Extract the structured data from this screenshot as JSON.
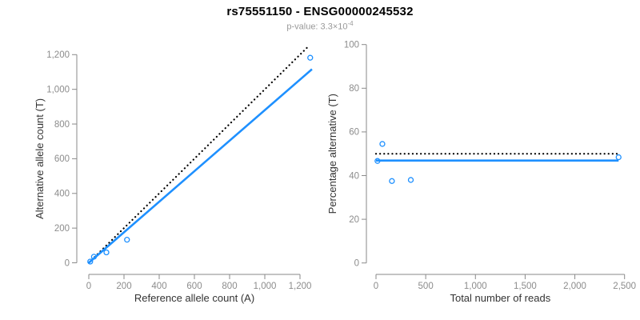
{
  "header": {
    "title": "rs75551150 - ENSG00000245532",
    "pvalue_text": "p-value: 3.3×10",
    "pvalue_exponent": "-4"
  },
  "colors": {
    "accent_blue": "#1E90FF",
    "identity_black": "#000000",
    "axis_gray": "#8a8a8a",
    "tick_label_gray": "#8c8c8c",
    "axis_label_dark": "#333333",
    "subtitle_gray": "#999999"
  },
  "chart_data": [
    {
      "type": "scatter",
      "title": "",
      "xlabel": "Reference allele count (A)",
      "ylabel": "Alternative allele count (T)",
      "xlim": [
        0,
        1270
      ],
      "ylim": [
        0,
        1260
      ],
      "xticks": [
        0,
        200,
        400,
        600,
        800,
        1000,
        1200
      ],
      "xtick_labels": [
        "0",
        "200",
        "400",
        "600",
        "800",
        "1,000",
        "1,200"
      ],
      "yticks": [
        0,
        200,
        400,
        600,
        800,
        1000,
        1200
      ],
      "ytick_labels": [
        "0",
        "200",
        "400",
        "600",
        "800",
        "1,000",
        "1,200"
      ],
      "points": [
        {
          "x": 8,
          "y": 7
        },
        {
          "x": 29,
          "y": 35
        },
        {
          "x": 100,
          "y": 60
        },
        {
          "x": 217,
          "y": 133
        },
        {
          "x": 1258,
          "y": 1182
        }
      ],
      "lines": [
        {
          "name": "identity-line",
          "style": "dotted",
          "color_key": "identity_black",
          "x1": 0,
          "y1": 0,
          "x2": 1245,
          "y2": 1245
        },
        {
          "name": "fit-line",
          "style": "solid",
          "color_key": "accent_blue",
          "x1": 0,
          "y1": 0,
          "x2": 1268,
          "y2": 1116
        }
      ],
      "legend": "none",
      "grid": false
    },
    {
      "type": "scatter",
      "title": "",
      "xlabel": "Total number of reads",
      "ylabel": "Percentage alternative (T)",
      "xlim": [
        0,
        2500
      ],
      "ylim": [
        0,
        100
      ],
      "xticks": [
        0,
        500,
        1000,
        1500,
        2000,
        2500
      ],
      "xtick_labels": [
        "0",
        "500",
        "1,000",
        "1,500",
        "2,000",
        "2,500"
      ],
      "yticks": [
        0,
        20,
        40,
        60,
        80,
        100
      ],
      "ytick_labels": [
        "0",
        "20",
        "40",
        "60",
        "80",
        "100"
      ],
      "points": [
        {
          "x": 15,
          "y": 46.7
        },
        {
          "x": 64,
          "y": 54.5
        },
        {
          "x": 160,
          "y": 37.5
        },
        {
          "x": 350,
          "y": 38
        },
        {
          "x": 2440,
          "y": 48.4
        }
      ],
      "lines": [
        {
          "name": "expected-line",
          "style": "dotted",
          "color_key": "identity_black",
          "x1": 0,
          "y1": 50,
          "x2": 2440,
          "y2": 50
        },
        {
          "name": "fit-line",
          "style": "solid",
          "color_key": "accent_blue",
          "x1": 0,
          "y1": 46.9,
          "x2": 2440,
          "y2": 46.9
        }
      ],
      "legend": "none",
      "grid": false
    }
  ]
}
